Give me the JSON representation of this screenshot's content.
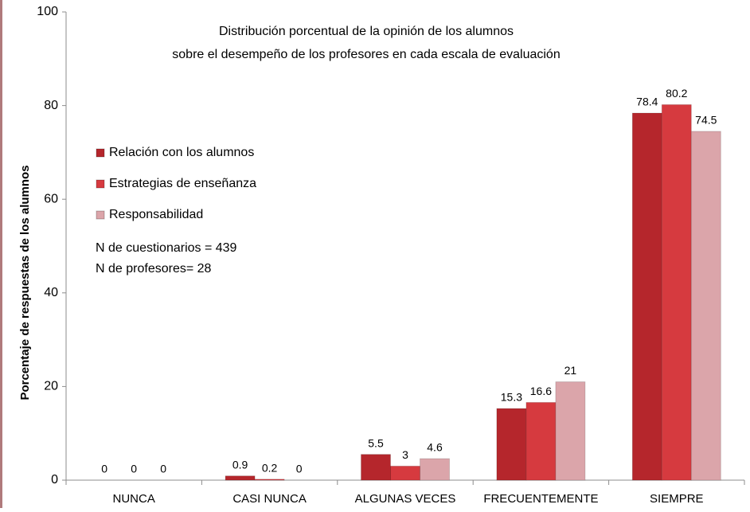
{
  "chart_data": {
    "type": "bar",
    "title": [
      "Distribución porcentual de la opinión de los alumnos",
      "sobre el desempeño de los profesores en cada escala de evaluación"
    ],
    "y_label": "Porcentaje de respuestas de los alumnos",
    "categories": [
      "NUNCA",
      "CASI NUNCA",
      "ALGUNAS VECES",
      "FRECUENTEMENTE",
      "SIEMPRE"
    ],
    "series": [
      {
        "name": "Relación con los alumnos",
        "color": "#b5262c",
        "values": [
          0,
          0.9,
          5.5,
          15.3,
          78.4
        ]
      },
      {
        "name": "Estrategias de enseñanza",
        "color": "#d63a3f",
        "values": [
          0,
          0.2,
          3,
          16.6,
          80.2
        ]
      },
      {
        "name": "Responsabilidad",
        "color": "#dba5aa",
        "values": [
          0,
          0,
          4.6,
          21,
          74.5
        ]
      }
    ],
    "annotations": [
      "N de cuestionarios = 439",
      "N de profesores= 28"
    ],
    "ylim": [
      0,
      100
    ],
    "yticks": [
      0,
      20,
      40,
      60,
      80,
      100
    ],
    "grid": false,
    "legend": "left"
  }
}
